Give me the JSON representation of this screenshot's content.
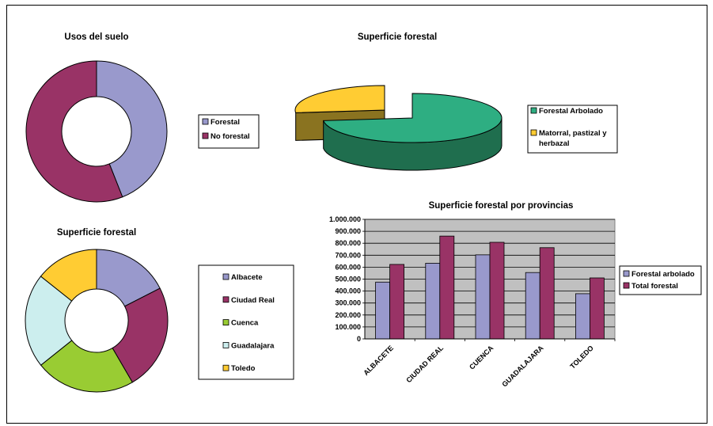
{
  "colors": {
    "forestal": "#9999CC",
    "no_forestal": "#993366",
    "arbolado": "#2EAE82",
    "arbolado_dark": "#1F6E4E",
    "matorral": "#FFCC33",
    "matorral_dark": "#8A7320",
    "albacete": "#9999CC",
    "ciudad_real": "#993366",
    "cuenca": "#99CC33",
    "guadalajara": "#CCEEEE",
    "toledo": "#FFCC33",
    "plot_bg": "#C0C0C0",
    "bar_arbolado": "#9999CC",
    "bar_total": "#993366"
  },
  "chart_data": [
    {
      "type": "pie",
      "title": "Usos del suelo",
      "labels": [
        "Forestal",
        "No forestal"
      ],
      "values": [
        44,
        56
      ],
      "legend": "right",
      "donut": true
    },
    {
      "type": "pie",
      "title": "Superficie forestal",
      "labels": [
        "Forestal Arbolado",
        "Matorral, pastizal y herbazal"
      ],
      "legend_lines": [
        [
          "Forestal Arbolado"
        ],
        [
          "Matorral, pastizal y",
          "herbazal"
        ]
      ],
      "values": [
        76,
        24
      ],
      "style": "3d-exploded",
      "legend": "right"
    },
    {
      "type": "pie",
      "title": "Superficie forestal",
      "labels": [
        "Albacete",
        "Ciudad Real",
        "Cuenca",
        "Guadalajara",
        "Toledo"
      ],
      "values": [
        623,
        860,
        808,
        763,
        510
      ],
      "legend": "right",
      "donut": true
    },
    {
      "type": "bar",
      "title": "Superficie forestal por provincias",
      "categories": [
        "ALBACETE",
        "CIUDAD REAL",
        "CUENCA",
        "GUADALAJARA",
        "TOLEDO"
      ],
      "series": [
        {
          "name": "Forestal arbolado",
          "values": [
            475000,
            633000,
            703000,
            555000,
            378000
          ]
        },
        {
          "name": "Total forestal",
          "values": [
            623000,
            860000,
            808000,
            763000,
            510000
          ]
        }
      ],
      "ylim": [
        0,
        1000000
      ],
      "yticks": [
        "0",
        "100.000",
        "200.000",
        "300.000",
        "400.000",
        "500.000",
        "600.000",
        "700.000",
        "800.000",
        "900.000",
        "1.000.000"
      ],
      "grid": true,
      "legend": "right"
    }
  ]
}
